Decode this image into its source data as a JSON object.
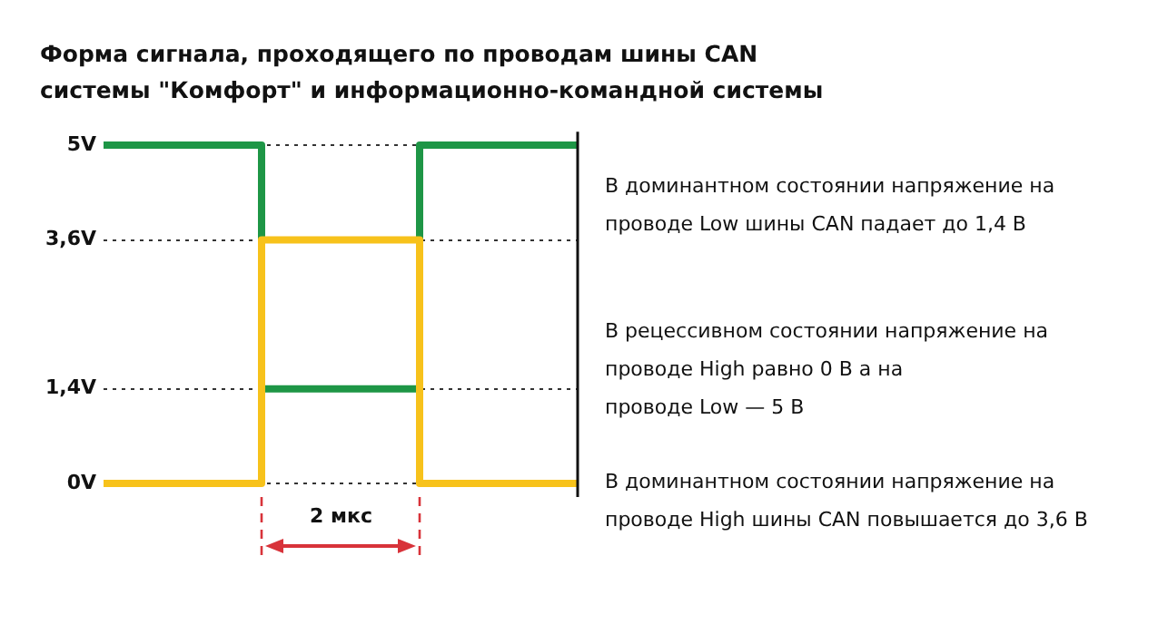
{
  "chart_data": {
    "type": "step",
    "title": "Форма сигнала, проходящего по проводам шины CAN\nсистемы \"Комфорт\" и информационно-командной системы",
    "categories": [
      null,
      null,
      null,
      null
    ],
    "series": [
      {
        "color": "#1e9646",
        "values": [
          5,
          1.4,
          5,
          5
        ]
      },
      {
        "color": "#f7c21b",
        "values": [
          0,
          3.6,
          0,
          0
        ]
      }
    ],
    "ylim": [
      -0.2,
      5.2
    ],
    "yticks": [
      {
        "value": 0,
        "label": "0V"
      },
      {
        "value": 1.4,
        "label": "1,4V"
      },
      {
        "value": 3.6,
        "label": "3,6V"
      },
      {
        "value": 5,
        "label": "5V"
      }
    ],
    "grid": "y",
    "legend": false,
    "tick_labels": "y",
    "marker": "none",
    "line_style": "solid",
    "annotations": [
      "2 мкс",
      "В доминантном состоянии напряжение на\nпроводе Low шины CAN падает до 1,4 В",
      "В рецессивном состоянии напряжение на\nпроводе High равно 0 В а на\nпроводе Low — 5 В",
      "В доминантном состоянии напряжение на\nпроводе High шины CAN повышается до 3,6 В"
    ]
  }
}
